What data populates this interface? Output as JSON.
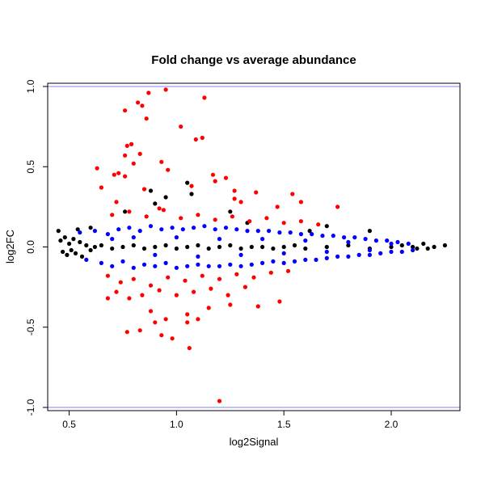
{
  "chart_data": {
    "type": "scatter",
    "title": "Fold change vs average abundance",
    "xlabel": "log2Signal",
    "ylabel": "log2FC",
    "xlim": [
      0.4,
      2.32
    ],
    "ylim": [
      -1.02,
      1.02
    ],
    "x_ticks": [
      {
        "value": 0.5,
        "label": "0.5"
      },
      {
        "value": 1.0,
        "label": "1.0"
      },
      {
        "value": 1.5,
        "label": "1.5"
      },
      {
        "value": 2.0,
        "label": "2.0"
      }
    ],
    "y_ticks": [
      {
        "value": -1.0,
        "label": "-1.0"
      },
      {
        "value": -0.5,
        "label": "-0.5"
      },
      {
        "value": 0.0,
        "label": "0.0"
      },
      {
        "value": 0.5,
        "label": "0.5"
      },
      {
        "value": 1.0,
        "label": "1.0"
      }
    ],
    "grid": false,
    "legend": "none",
    "reference_lines": [
      {
        "axis": "y",
        "value": 1.0,
        "color": "#8080ff"
      },
      {
        "axis": "y",
        "value": -1.0,
        "color": "#8080ff"
      }
    ],
    "series": [
      {
        "color": "#000000",
        "points": [
          [
            0.46,
            0.04
          ],
          [
            0.47,
            -0.03
          ],
          [
            0.48,
            0.06
          ],
          [
            0.49,
            -0.05
          ],
          [
            0.5,
            0.02
          ],
          [
            0.51,
            -0.02
          ],
          [
            0.52,
            0.05
          ],
          [
            0.53,
            -0.04
          ],
          [
            0.55,
            0.03
          ],
          [
            0.56,
            -0.06
          ],
          [
            0.58,
            0.01
          ],
          [
            0.6,
            -0.02
          ],
          [
            0.62,
            0.0
          ],
          [
            0.65,
            0.01
          ],
          [
            0.7,
            -0.01
          ],
          [
            0.75,
            0.0
          ],
          [
            0.8,
            0.01
          ],
          [
            0.85,
            -0.01
          ],
          [
            0.9,
            0.0
          ],
          [
            0.95,
            0.01
          ],
          [
            1.0,
            -0.01
          ],
          [
            1.05,
            0.0
          ],
          [
            1.1,
            0.01
          ],
          [
            1.15,
            -0.01
          ],
          [
            1.2,
            0.0
          ],
          [
            1.25,
            0.01
          ],
          [
            1.3,
            -0.01
          ],
          [
            1.35,
            0.0
          ],
          [
            1.4,
            0.0
          ],
          [
            1.45,
            -0.01
          ],
          [
            1.5,
            0.0
          ],
          [
            1.55,
            0.01
          ],
          [
            1.6,
            -0.01
          ],
          [
            1.7,
            0.0
          ],
          [
            1.8,
            0.01
          ],
          [
            1.9,
            -0.01
          ],
          [
            2.0,
            0.0
          ],
          [
            2.05,
            0.01
          ],
          [
            2.1,
            0.0
          ],
          [
            2.12,
            -0.01
          ],
          [
            2.15,
            0.02
          ],
          [
            2.17,
            -0.01
          ],
          [
            2.2,
            0.0
          ],
          [
            2.25,
            0.01
          ],
          [
            0.88,
            0.35
          ],
          [
            0.9,
            0.27
          ],
          [
            0.95,
            0.31
          ],
          [
            1.05,
            0.4
          ],
          [
            1.07,
            0.33
          ],
          [
            0.76,
            0.22
          ],
          [
            1.25,
            0.22
          ],
          [
            1.33,
            0.15
          ],
          [
            1.62,
            0.1
          ],
          [
            1.7,
            0.13
          ],
          [
            1.9,
            0.1
          ],
          [
            0.45,
            0.1
          ],
          [
            0.54,
            0.11
          ],
          [
            0.6,
            0.12
          ]
        ]
      },
      {
        "color": "#0000ff",
        "points": [
          [
            0.55,
            0.09
          ],
          [
            0.58,
            -0.08
          ],
          [
            0.62,
            0.1
          ],
          [
            0.65,
            -0.1
          ],
          [
            0.68,
            0.08
          ],
          [
            0.7,
            -0.12
          ],
          [
            0.73,
            0.11
          ],
          [
            0.75,
            -0.09
          ],
          [
            0.78,
            0.12
          ],
          [
            0.8,
            -0.13
          ],
          [
            0.83,
            0.1
          ],
          [
            0.85,
            -0.11
          ],
          [
            0.88,
            0.13
          ],
          [
            0.9,
            -0.12
          ],
          [
            0.93,
            0.11
          ],
          [
            0.95,
            -0.1
          ],
          [
            0.98,
            0.12
          ],
          [
            1.0,
            -0.13
          ],
          [
            1.03,
            0.11
          ],
          [
            1.05,
            -0.12
          ],
          [
            1.08,
            0.12
          ],
          [
            1.1,
            -0.11
          ],
          [
            1.13,
            0.13
          ],
          [
            1.15,
            -0.12
          ],
          [
            1.18,
            0.11
          ],
          [
            1.2,
            -0.12
          ],
          [
            1.23,
            0.12
          ],
          [
            1.25,
            -0.11
          ],
          [
            1.28,
            0.11
          ],
          [
            1.3,
            -0.12
          ],
          [
            1.33,
            0.1
          ],
          [
            1.35,
            -0.11
          ],
          [
            1.38,
            0.1
          ],
          [
            1.4,
            -0.1
          ],
          [
            1.43,
            0.1
          ],
          [
            1.45,
            -0.09
          ],
          [
            1.48,
            0.09
          ],
          [
            1.5,
            -0.1
          ],
          [
            1.53,
            0.09
          ],
          [
            1.55,
            -0.09
          ],
          [
            1.58,
            0.08
          ],
          [
            1.6,
            -0.08
          ],
          [
            1.63,
            0.08
          ],
          [
            1.65,
            -0.08
          ],
          [
            1.68,
            0.07
          ],
          [
            1.7,
            -0.07
          ],
          [
            1.73,
            0.07
          ],
          [
            1.75,
            -0.06
          ],
          [
            1.78,
            0.06
          ],
          [
            1.8,
            -0.06
          ],
          [
            1.83,
            0.06
          ],
          [
            1.85,
            -0.05
          ],
          [
            1.88,
            0.05
          ],
          [
            1.9,
            -0.05
          ],
          [
            1.93,
            0.04
          ],
          [
            1.95,
            -0.04
          ],
          [
            1.98,
            0.04
          ],
          [
            2.0,
            -0.03
          ],
          [
            2.03,
            0.03
          ],
          [
            2.05,
            -0.03
          ],
          [
            2.08,
            0.02
          ],
          [
            2.1,
            -0.02
          ],
          [
            0.7,
            0.05
          ],
          [
            0.8,
            0.06
          ],
          [
            0.9,
            -0.05
          ],
          [
            1.0,
            0.06
          ],
          [
            1.1,
            -0.06
          ],
          [
            1.2,
            0.05
          ],
          [
            1.3,
            -0.05
          ],
          [
            1.4,
            0.05
          ],
          [
            1.5,
            -0.04
          ],
          [
            1.6,
            0.04
          ],
          [
            1.7,
            -0.03
          ],
          [
            1.8,
            0.03
          ],
          [
            1.9,
            -0.02
          ],
          [
            2.0,
            0.02
          ]
        ]
      },
      {
        "color": "#ff0000",
        "points": [
          [
            0.95,
            0.98
          ],
          [
            0.87,
            0.96
          ],
          [
            0.82,
            0.9
          ],
          [
            0.84,
            0.88
          ],
          [
            1.13,
            0.93
          ],
          [
            0.76,
            0.85
          ],
          [
            0.86,
            0.8
          ],
          [
            1.02,
            0.75
          ],
          [
            0.77,
            0.63
          ],
          [
            0.79,
            0.64
          ],
          [
            0.76,
            0.57
          ],
          [
            0.83,
            0.58
          ],
          [
            1.09,
            0.67
          ],
          [
            1.12,
            0.68
          ],
          [
            0.8,
            0.52
          ],
          [
            0.63,
            0.49
          ],
          [
            0.93,
            0.53
          ],
          [
            0.96,
            0.48
          ],
          [
            1.17,
            0.45
          ],
          [
            0.71,
            0.45
          ],
          [
            0.73,
            0.46
          ],
          [
            0.76,
            0.44
          ],
          [
            1.23,
            0.43
          ],
          [
            1.18,
            0.41
          ],
          [
            0.65,
            0.37
          ],
          [
            0.85,
            0.36
          ],
          [
            1.07,
            0.38
          ],
          [
            1.27,
            0.35
          ],
          [
            1.37,
            0.34
          ],
          [
            1.54,
            0.33
          ],
          [
            1.27,
            0.3
          ],
          [
            1.3,
            0.28
          ],
          [
            1.58,
            0.28
          ],
          [
            1.75,
            0.25
          ],
          [
            1.47,
            0.25
          ],
          [
            0.72,
            0.28
          ],
          [
            0.92,
            0.24
          ],
          [
            0.7,
            0.2
          ],
          [
            0.78,
            0.22
          ],
          [
            0.86,
            0.19
          ],
          [
            0.94,
            0.23
          ],
          [
            1.02,
            0.18
          ],
          [
            1.1,
            0.2
          ],
          [
            1.18,
            0.17
          ],
          [
            1.26,
            0.19
          ],
          [
            1.34,
            0.16
          ],
          [
            1.42,
            0.18
          ],
          [
            1.5,
            0.15
          ],
          [
            1.58,
            0.16
          ],
          [
            1.66,
            0.14
          ],
          [
            0.68,
            -0.18
          ],
          [
            0.74,
            -0.22
          ],
          [
            0.8,
            -0.2
          ],
          [
            0.88,
            -0.24
          ],
          [
            0.96,
            -0.19
          ],
          [
            1.04,
            -0.21
          ],
          [
            1.12,
            -0.18
          ],
          [
            1.2,
            -0.2
          ],
          [
            1.28,
            -0.17
          ],
          [
            1.36,
            -0.19
          ],
          [
            1.44,
            -0.16
          ],
          [
            1.52,
            -0.15
          ],
          [
            0.72,
            -0.28
          ],
          [
            0.78,
            -0.32
          ],
          [
            0.84,
            -0.3
          ],
          [
            0.92,
            -0.27
          ],
          [
            1.0,
            -0.3
          ],
          [
            1.08,
            -0.28
          ],
          [
            1.16,
            -0.26
          ],
          [
            1.24,
            -0.3
          ],
          [
            1.32,
            -0.25
          ],
          [
            0.68,
            -0.32
          ],
          [
            0.88,
            -0.4
          ],
          [
            0.95,
            -0.45
          ],
          [
            1.05,
            -0.42
          ],
          [
            1.15,
            -0.38
          ],
          [
            1.25,
            -0.36
          ],
          [
            1.38,
            -0.37
          ],
          [
            1.48,
            -0.34
          ],
          [
            1.1,
            -0.45
          ],
          [
            1.05,
            -0.47
          ],
          [
            0.9,
            -0.47
          ],
          [
            0.77,
            -0.53
          ],
          [
            0.83,
            -0.52
          ],
          [
            0.93,
            -0.55
          ],
          [
            0.98,
            -0.57
          ],
          [
            1.06,
            -0.63
          ],
          [
            1.2,
            -0.96
          ]
        ]
      }
    ]
  }
}
